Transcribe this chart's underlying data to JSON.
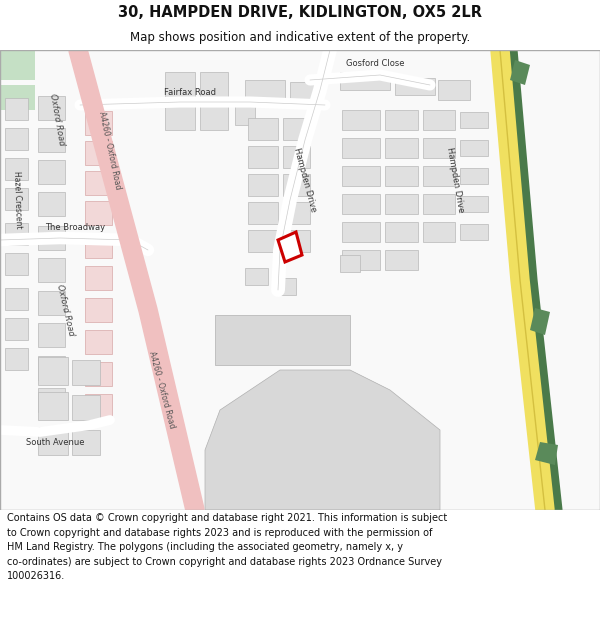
{
  "title": "30, HAMPDEN DRIVE, KIDLINGTON, OX5 2LR",
  "subtitle": "Map shows position and indicative extent of the property.",
  "footer": "Contains OS data © Crown copyright and database right 2021. This information is subject\nto Crown copyright and database rights 2023 and is reproduced with the permission of\nHM Land Registry. The polygons (including the associated geometry, namely x, y\nco-ordinates) are subject to Crown copyright and database rights 2023 Ordnance Survey\n100026316.",
  "background_color": "#ffffff",
  "road_pink": "#f0c0c0",
  "road_yellow": "#f0e060",
  "road_yellow_edge": "#d4c040",
  "road_green_dark": "#4a7a4a",
  "building_fill": "#e0e0e0",
  "building_edge": "#b8b8b8",
  "highlight_red": "#cc0000",
  "map_border": "#aaaaaa",
  "figsize": [
    6.0,
    6.25
  ],
  "dpi": 100
}
